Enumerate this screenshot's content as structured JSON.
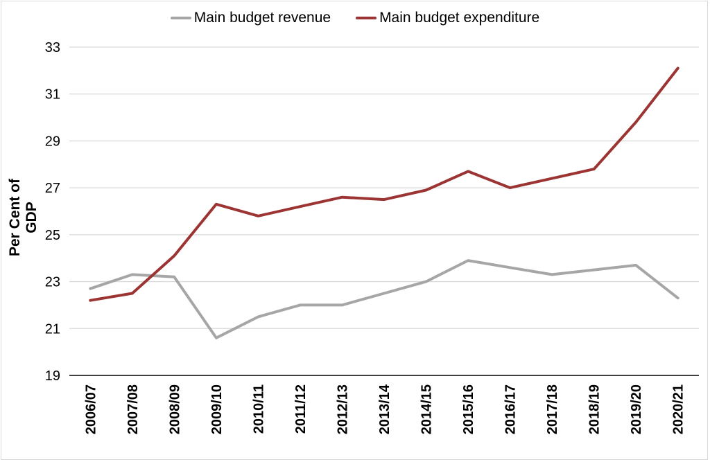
{
  "chart_data": {
    "type": "line",
    "title": "",
    "xlabel": "",
    "ylabel": "Per Cent of GDP",
    "ylim": [
      19,
      33
    ],
    "yticks": [
      19,
      21,
      23,
      25,
      27,
      29,
      31,
      33
    ],
    "grid": true,
    "legend_position": "top",
    "categories": [
      "2006/07",
      "2007/08",
      "2008/09",
      "2009/10",
      "2010/11",
      "2011/12",
      "2012/13",
      "2013/14",
      "2014/15",
      "2015/16",
      "2016/17",
      "2017/18",
      "2018/19",
      "2019/20",
      "2020/21"
    ],
    "series": [
      {
        "name": "Main budget revenue",
        "color": "#a6a6a6",
        "values": [
          22.7,
          23.3,
          23.2,
          20.6,
          21.5,
          22.0,
          22.0,
          22.5,
          23.0,
          23.9,
          23.6,
          23.3,
          23.5,
          23.7,
          22.3
        ]
      },
      {
        "name": "Main budget expenditure",
        "color": "#9b3432",
        "values": [
          22.2,
          22.5,
          24.1,
          26.3,
          25.8,
          26.2,
          26.6,
          26.5,
          26.9,
          27.7,
          27.0,
          27.4,
          27.8,
          29.8,
          32.1
        ]
      }
    ]
  }
}
